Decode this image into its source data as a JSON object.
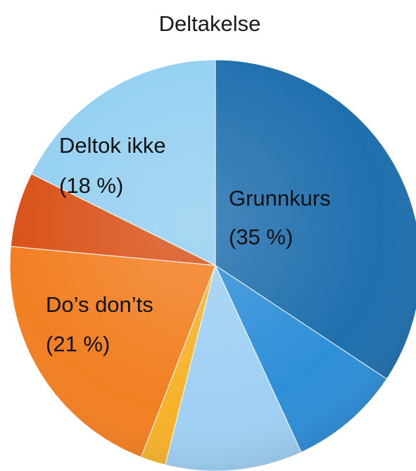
{
  "chart_data": {
    "type": "pie",
    "title": "Deltakelse",
    "slices": [
      {
        "label": "Grunnkurs",
        "value": 35,
        "display": "(35 %)",
        "color": "#1f6fae"
      },
      {
        "label": "",
        "value": 9,
        "display": "",
        "color": "#2e8fd8"
      },
      {
        "label": "",
        "value": 11,
        "display": "",
        "color": "#9fd0f3"
      },
      {
        "label": "",
        "value": 2,
        "display": "",
        "color": "#f7b22a"
      },
      {
        "label": "Do’s don’ts",
        "value": 21,
        "display": "(21 %)",
        "color": "#f27f22"
      },
      {
        "label": "",
        "value": 6,
        "display": "",
        "color": "#d9531a"
      },
      {
        "label": "Deltok ikke",
        "value": 18,
        "display": "(18 %)",
        "color": "#94d0f1"
      }
    ],
    "legend": "none"
  }
}
